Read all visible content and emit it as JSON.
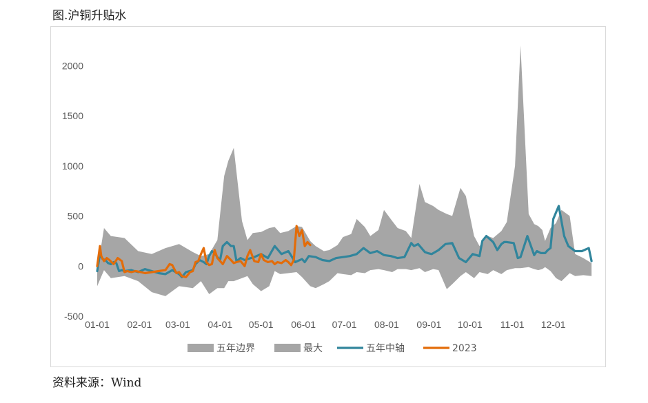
{
  "title": "图.沪铜升贴水",
  "source": "资料来源：Wind",
  "chart_data": {
    "type": "area",
    "ylim": [
      -500,
      2250
    ],
    "yticks": [
      -500,
      0,
      500,
      1000,
      1500,
      2000
    ],
    "x_tick_labels": [
      "01-01",
      "02-01",
      "03-01",
      "04-01",
      "05-01",
      "06-01",
      "07-01",
      "08-01",
      "09-01",
      "10-01",
      "11-01",
      "12-01"
    ],
    "grid": false,
    "legend_position": "bottom",
    "series": [
      {
        "name": "五年边界",
        "kind": "band",
        "color": "#a6a6a6",
        "x_day": [
          0,
          5,
          10,
          20,
          30,
          40,
          50,
          60,
          70,
          76,
          82,
          88,
          93,
          96,
          100,
          106,
          110,
          114,
          120,
          126,
          130,
          134,
          140,
          146,
          150,
          156,
          160,
          166,
          170,
          176,
          180,
          186,
          190,
          196,
          200,
          206,
          210,
          216,
          220,
          226,
          230,
          236,
          240,
          246,
          250,
          256,
          260,
          266,
          270,
          276,
          280,
          286,
          290,
          296,
          300,
          306,
          310,
          316,
          320,
          323,
          326,
          328,
          332,
          336,
          340,
          346,
          350,
          356,
          362
        ],
        "upper": [
          -50,
          380,
          300,
          280,
          150,
          120,
          180,
          220,
          140,
          100,
          120,
          260,
          900,
          1050,
          1180,
          450,
          260,
          330,
          340,
          380,
          390,
          330,
          350,
          400,
          390,
          250,
          200,
          150,
          160,
          210,
          290,
          320,
          470,
          390,
          300,
          360,
          560,
          450,
          380,
          350,
          280,
          820,
          640,
          600,
          560,
          520,
          500,
          780,
          700,
          300,
          200,
          300,
          280,
          350,
          440,
          1000,
          2200,
          520,
          420,
          400,
          360,
          250,
          380,
          430,
          560,
          500,
          120,
          80,
          30
        ],
        "lower": [
          -200,
          -40,
          -120,
          -100,
          -150,
          -260,
          -300,
          -200,
          -220,
          -150,
          -280,
          -220,
          -220,
          -150,
          -150,
          -120,
          -100,
          -180,
          -250,
          -200,
          -50,
          -80,
          -70,
          -60,
          -110,
          -200,
          -220,
          -180,
          -150,
          -70,
          -80,
          -90,
          -60,
          -70,
          -40,
          -30,
          -40,
          -60,
          -30,
          -30,
          -40,
          -20,
          -60,
          -30,
          -40,
          -230,
          -180,
          -100,
          -60,
          -120,
          -60,
          -80,
          -40,
          -80,
          -40,
          -20,
          -20,
          -10,
          -30,
          -40,
          -30,
          -10,
          -50,
          -120,
          -150,
          -70,
          -100,
          -90,
          -100
        ]
      },
      {
        "name": "最大",
        "kind": "area",
        "color": "#a6a6a6"
      },
      {
        "name": "五年中轴",
        "kind": "line",
        "color": "#31859c",
        "x_day": [
          0,
          2,
          4,
          6,
          8,
          10,
          12,
          14,
          16,
          18,
          20,
          25,
          30,
          35,
          40,
          45,
          50,
          55,
          60,
          62,
          65,
          70,
          72,
          75,
          78,
          80,
          82,
          84,
          86,
          88,
          90,
          92,
          95,
          98,
          100,
          102,
          105,
          108,
          110,
          115,
          120,
          125,
          130,
          135,
          140,
          145,
          150,
          152,
          155,
          160,
          165,
          170,
          175,
          180,
          185,
          190,
          195,
          200,
          205,
          210,
          215,
          220,
          225,
          230,
          232,
          235,
          240,
          242,
          245,
          250,
          255,
          260,
          265,
          270,
          275,
          280,
          282,
          285,
          290,
          293,
          296,
          298,
          300,
          305,
          308,
          310,
          315,
          320,
          322,
          325,
          328,
          330,
          332,
          334,
          338,
          342,
          345,
          350,
          355,
          360,
          362
        ],
        "values": [
          -50,
          120,
          70,
          60,
          30,
          20,
          40,
          30,
          -50,
          -40,
          -50,
          -40,
          -60,
          -30,
          -50,
          -70,
          -80,
          -40,
          -80,
          -110,
          -60,
          -40,
          20,
          60,
          40,
          20,
          100,
          150,
          130,
          90,
          60,
          200,
          240,
          200,
          200,
          50,
          80,
          60,
          70,
          90,
          120,
          80,
          200,
          120,
          150,
          40,
          70,
          40,
          100,
          90,
          60,
          50,
          80,
          90,
          100,
          120,
          180,
          130,
          150,
          110,
          100,
          80,
          90,
          230,
          200,
          220,
          140,
          130,
          120,
          160,
          220,
          230,
          80,
          40,
          120,
          100,
          250,
          300,
          240,
          160,
          220,
          240,
          240,
          230,
          80,
          90,
          300,
          110,
          150,
          130,
          130,
          160,
          180,
          470,
          600,
          300,
          200,
          150,
          150,
          180,
          50
        ]
      },
      {
        "name": "2023",
        "kind": "line",
        "color": "#e36c09",
        "x_day": [
          0,
          2,
          3,
          5,
          7,
          9,
          12,
          15,
          18,
          20,
          22,
          25,
          28,
          32,
          35,
          40,
          45,
          50,
          53,
          55,
          58,
          60,
          62,
          65,
          68,
          70,
          72,
          74,
          76,
          78,
          80,
          82,
          84,
          86,
          88,
          90,
          92,
          95,
          98,
          100,
          102,
          105,
          108,
          110,
          112,
          115,
          118,
          120,
          122,
          125,
          128,
          130,
          132,
          135,
          138,
          140,
          142,
          144,
          146,
          148,
          150,
          152,
          154,
          156
        ],
        "values": [
          0,
          200,
          100,
          50,
          80,
          60,
          20,
          80,
          50,
          -60,
          -50,
          -60,
          -50,
          -60,
          -70,
          -60,
          -50,
          -40,
          20,
          10,
          -70,
          -60,
          -100,
          -110,
          -60,
          -50,
          40,
          50,
          120,
          180,
          40,
          10,
          20,
          160,
          80,
          50,
          20,
          100,
          60,
          30,
          40,
          50,
          0,
          100,
          160,
          50,
          40,
          120,
          60,
          40,
          50,
          20,
          40,
          30,
          60,
          40,
          10,
          60,
          400,
          300,
          360,
          200,
          240,
          210
        ]
      }
    ]
  }
}
